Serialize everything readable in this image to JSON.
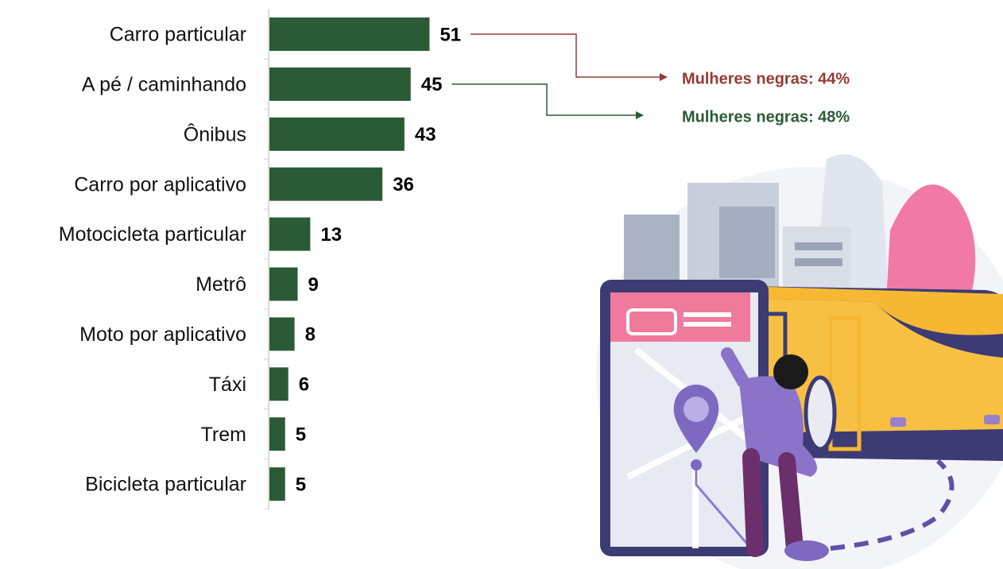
{
  "chart_data": {
    "type": "bar",
    "orientation": "horizontal",
    "categories": [
      "Carro particular",
      "A pé / caminhando",
      "Ônibus",
      "Carro por aplicativo",
      "Motocicleta particular",
      "Metrô",
      "Moto por aplicativo",
      "Táxi",
      "Trem",
      "Bicicleta particular"
    ],
    "values": [
      51,
      45,
      43,
      36,
      13,
      9,
      8,
      6,
      5,
      5
    ],
    "color": "#2b5b36",
    "annotations": [
      {
        "text": "Mulheres negras: 44%",
        "color": "#943a33"
      },
      {
        "text": "Mulheres negras: 48%",
        "color": "#2b5b36"
      }
    ]
  }
}
